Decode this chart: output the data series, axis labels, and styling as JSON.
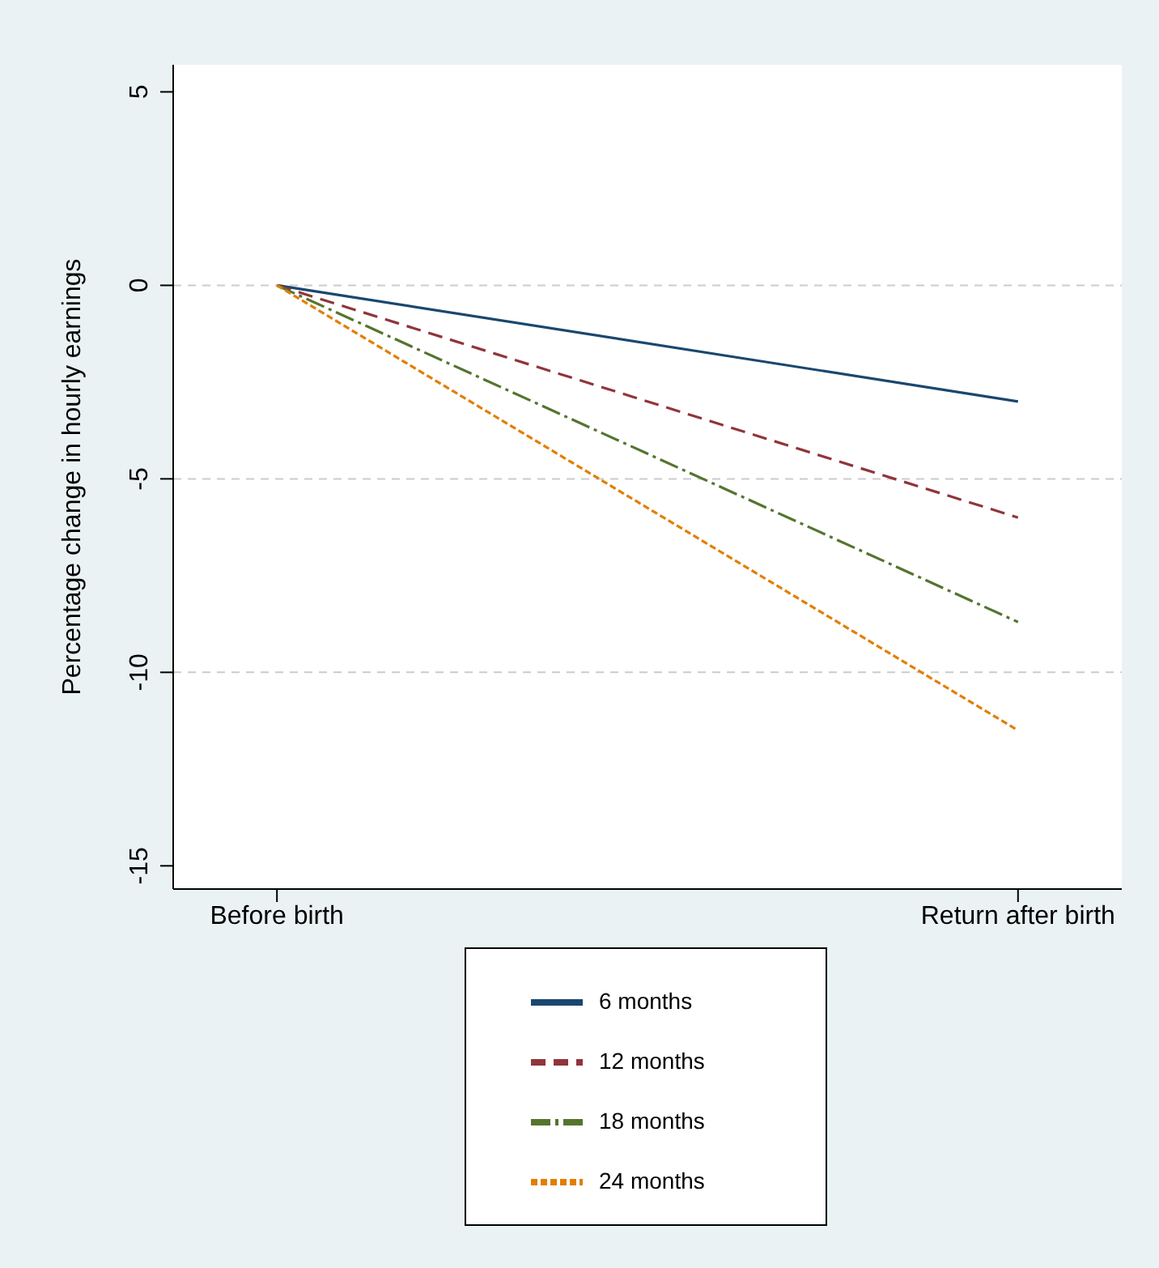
{
  "chart_data": {
    "type": "line",
    "ylabel": "Percentage change in hourly earnings",
    "categories": [
      "Before birth",
      "Return after birth"
    ],
    "series": [
      {
        "name": "6 months",
        "color": "#1a476f",
        "values": [
          0,
          -3
        ],
        "line_style": "solid"
      },
      {
        "name": "12 months",
        "color": "#90353b",
        "values": [
          0,
          -6
        ],
        "line_style": "dashed"
      },
      {
        "name": "18 months",
        "color": "#55752f",
        "values": [
          0,
          -8.7
        ],
        "line_style": "dashdot"
      },
      {
        "name": "24 months",
        "color": "#e37e00",
        "values": [
          0,
          -11.5
        ],
        "line_style": "dotted"
      }
    ],
    "ylim": [
      -15.6,
      5.7
    ],
    "yticks": [
      5,
      0,
      -5,
      -10,
      -15
    ],
    "grid": "y",
    "legend": "bottom",
    "marker": "none"
  }
}
